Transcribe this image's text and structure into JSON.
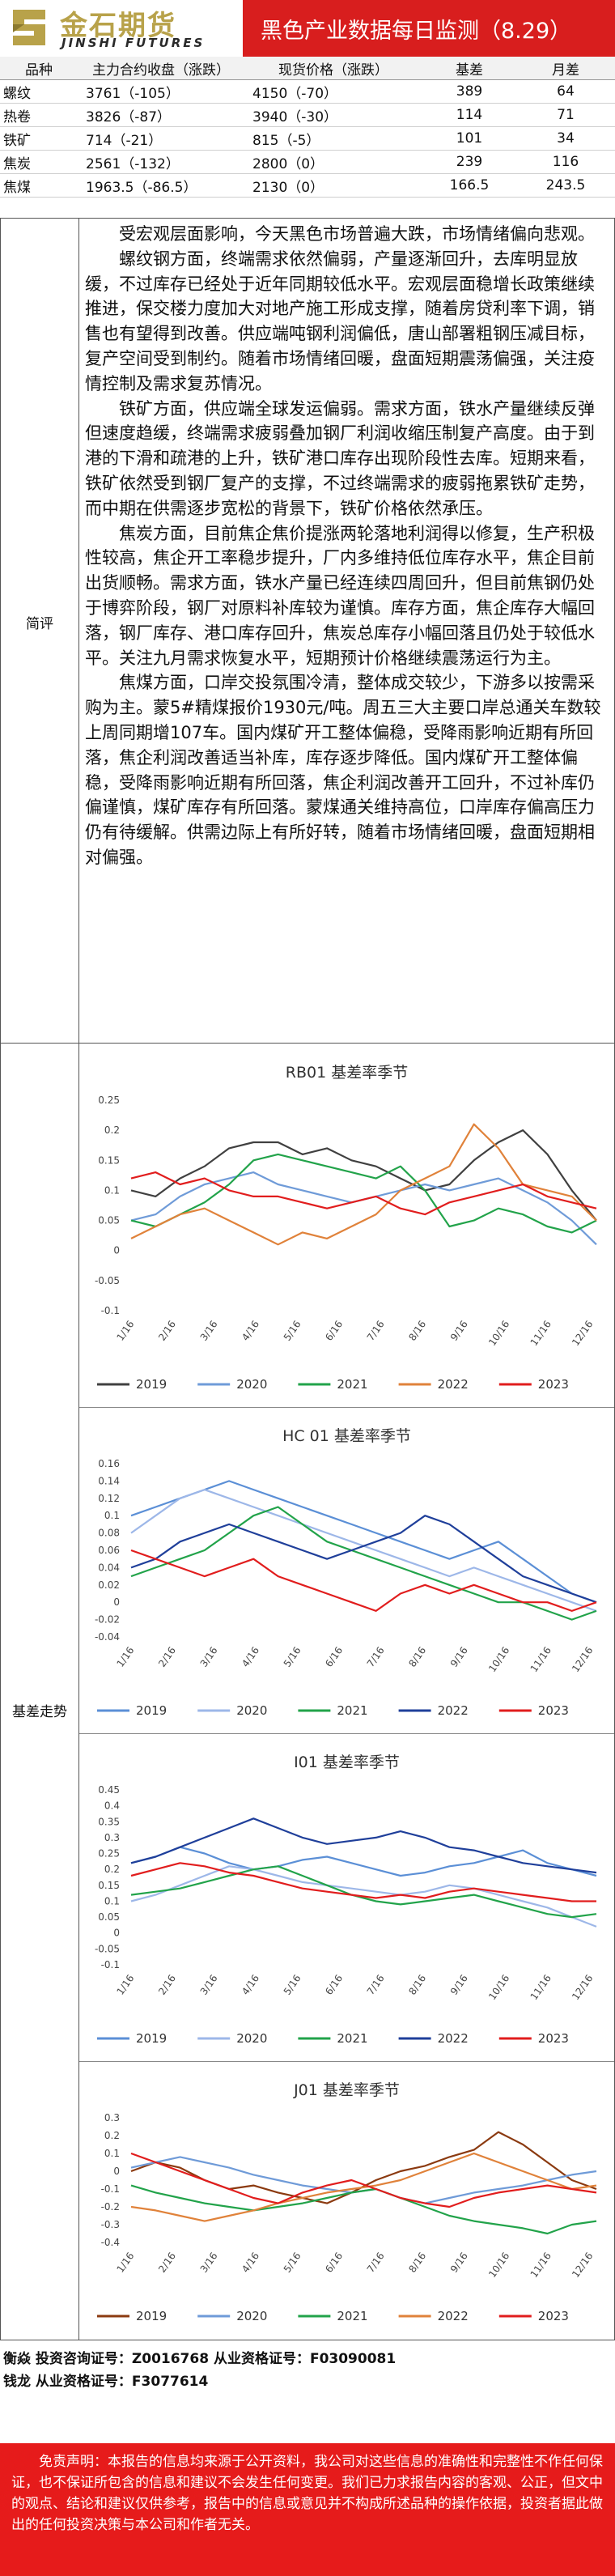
{
  "header": {
    "logo_cn": "金石期货",
    "logo_en": "JINSHI FUTURES",
    "title": "黑色产业数据每日监测（8.29）",
    "accent": "#d81e1e",
    "logo_gold": "#b8a24a"
  },
  "price_table": {
    "headers": [
      "品种",
      "主力合约收盘（涨跌）",
      "现货价格（涨跌）",
      "基差",
      "月差"
    ],
    "rows": [
      {
        "name": "螺纹",
        "futures": "3761（-105）",
        "spot": "4150（-70）",
        "basis": "389",
        "spread": "64"
      },
      {
        "name": "热卷",
        "futures": "3826（-87）",
        "spot": "3940（-30）",
        "basis": "114",
        "spread": "71"
      },
      {
        "name": "铁矿",
        "futures": "714（-21）",
        "spot": "815（-5）",
        "basis": "101",
        "spread": "34"
      },
      {
        "name": "焦炭",
        "futures": "2561（-132）",
        "spot": "2800（0）",
        "basis": "239",
        "spread": "116"
      },
      {
        "name": "焦煤",
        "futures": "1963.5（-86.5）",
        "spot": "2130（0）",
        "basis": "166.5",
        "spread": "243.5"
      }
    ]
  },
  "commentary": {
    "label": "简评",
    "paragraphs": [
      "受宏观层面影响，今天黑色市场普遍大跌，市场情绪偏向悲观。",
      "螺纹钢方面，终端需求依然偏弱，产量逐渐回升，去库明显放缓，不过库存已经处于近年同期较低水平。宏观层面稳增长政策继续推进，保交楼力度加大对地产施工形成支撑，随着房贷利率下调，销售也有望得到改善。供应端吨钢利润偏低，唐山部署粗钢压减目标，复产空间受到制约。随着市场情绪回暖，盘面短期震荡偏强，关注疫情控制及需求复苏情况。",
      "铁矿方面，供应端全球发运偏弱。需求方面，铁水产量继续反弹但速度趋缓，终端需求疲弱叠加钢厂利润收缩压制复产高度。由于到港的下滑和疏港的上升，铁矿港口库存出现阶段性去库。短期来看，铁矿依然受到钢厂复产的支撑，不过终端需求的疲弱拖累铁矿走势，而中期在供需逐步宽松的背景下，铁矿价格依然承压。",
      "焦炭方面，目前焦企焦价提涨两轮落地利润得以修复，生产积极性较高，焦企开工率稳步提升，厂内多维持低位库存水平，焦企目前出货顺畅。需求方面，铁水产量已经连续四周回升，但目前焦钢仍处于博弈阶段，钢厂对原料补库较为谨慎。库存方面，焦企库存大幅回落，钢厂库存、港口库存回升，焦炭总库存小幅回落且仍处于较低水平。关注九月需求恢复水平，短期预计价格继续震荡运行为主。",
      "焦煤方面，口岸交投氛围冷清，整体成交较少，下游多以按需采购为主。蒙5#精煤报价1930元/吨。周五三大主要口岸总通关车数较上周同期增107车。国内煤矿开工整体偏稳，受降雨影响近期有所回落，焦企利润改善适当补库，库存逐步降低。国内煤矿开工整体偏稳，受降雨影响近期有所回落，焦企利润改善开工回升，不过补库仍偏谨慎，煤矿库存有所回落。蒙煤通关维持高位，口岸库存偏高压力仍有待缓解。供需边际上有所好转，随着市场情绪回暖，盘面短期相对偏强。"
    ]
  },
  "basis_label": "基差走势",
  "chart_data": [
    {
      "type": "line",
      "title": "RB01 基差率季节",
      "xticks": [
        "1/16",
        "2/16",
        "3/16",
        "4/16",
        "5/16",
        "6/16",
        "7/16",
        "8/16",
        "9/16",
        "10/16",
        "11/16",
        "12/16"
      ],
      "ylim": [
        -0.1,
        0.25
      ],
      "yticks": [
        "0.25",
        "0.2",
        "0.15",
        "0.1",
        "0.05",
        "0",
        "-0.05",
        "-0.1"
      ],
      "series": [
        {
          "name": "2019",
          "color": "#404040",
          "values": [
            0.1,
            0.09,
            0.12,
            0.14,
            0.17,
            0.18,
            0.18,
            0.16,
            0.17,
            0.15,
            0.14,
            0.12,
            0.1,
            0.11,
            0.15,
            0.18,
            0.2,
            0.16,
            0.1,
            0.05
          ]
        },
        {
          "name": "2020",
          "color": "#6f9bd8",
          "values": [
            0.05,
            0.06,
            0.09,
            0.11,
            0.12,
            0.13,
            0.11,
            0.1,
            0.09,
            0.08,
            0.09,
            0.1,
            0.11,
            0.1,
            0.11,
            0.12,
            0.1,
            0.08,
            0.05,
            0.01
          ]
        },
        {
          "name": "2021",
          "color": "#22a34a",
          "values": [
            0.05,
            0.04,
            0.06,
            0.08,
            0.11,
            0.15,
            0.16,
            0.15,
            0.14,
            0.13,
            0.12,
            0.14,
            0.1,
            0.04,
            0.05,
            0.07,
            0.06,
            0.04,
            0.03,
            0.05
          ]
        },
        {
          "name": "2022",
          "color": "#e0823a",
          "values": [
            0.02,
            0.04,
            0.06,
            0.07,
            0.05,
            0.03,
            0.01,
            0.03,
            0.02,
            0.04,
            0.06,
            0.1,
            0.12,
            0.14,
            0.21,
            0.17,
            0.11,
            0.1,
            0.09,
            0.05
          ]
        },
        {
          "name": "2023",
          "color": "#e11d1d",
          "values": [
            0.12,
            0.13,
            0.11,
            0.12,
            0.1,
            0.09,
            0.09,
            0.08,
            0.07,
            0.08,
            0.09,
            0.07,
            0.06,
            0.08,
            0.09,
            0.1,
            0.11,
            0.09,
            0.08,
            0.07
          ]
        }
      ]
    },
    {
      "type": "line",
      "title": "HC 01 基差率季节",
      "xticks": [
        "1/16",
        "2/16",
        "3/16",
        "4/16",
        "5/16",
        "6/16",
        "7/16",
        "8/16",
        "9/16",
        "10/16",
        "11/16",
        "12/16"
      ],
      "ylim": [
        -0.04,
        0.16
      ],
      "yticks": [
        "0.16",
        "0.14",
        "0.12",
        "0.1",
        "0.08",
        "0.06",
        "0.04",
        "0.02",
        "0",
        "-0.02",
        "-0.04"
      ],
      "series": [
        {
          "name": "2019",
          "color": "#5b8fd6",
          "values": [
            0.1,
            0.11,
            0.12,
            0.13,
            0.14,
            0.13,
            0.12,
            0.11,
            0.1,
            0.09,
            0.08,
            0.07,
            0.06,
            0.05,
            0.06,
            0.07,
            0.05,
            0.03,
            0.01,
            0.0
          ]
        },
        {
          "name": "2020",
          "color": "#9db7e8",
          "values": [
            0.08,
            0.1,
            0.12,
            0.13,
            0.12,
            0.11,
            0.1,
            0.09,
            0.08,
            0.07,
            0.06,
            0.05,
            0.04,
            0.03,
            0.04,
            0.03,
            0.02,
            0.01,
            0.0,
            -0.01
          ]
        },
        {
          "name": "2021",
          "color": "#22a34a",
          "values": [
            0.03,
            0.04,
            0.05,
            0.06,
            0.08,
            0.1,
            0.11,
            0.09,
            0.07,
            0.06,
            0.05,
            0.04,
            0.03,
            0.02,
            0.01,
            0.0,
            0.0,
            -0.01,
            -0.02,
            -0.01
          ]
        },
        {
          "name": "2022",
          "color": "#1f3f9a",
          "values": [
            0.04,
            0.05,
            0.07,
            0.08,
            0.09,
            0.08,
            0.07,
            0.06,
            0.05,
            0.06,
            0.07,
            0.08,
            0.1,
            0.09,
            0.07,
            0.05,
            0.03,
            0.02,
            0.01,
            0.0
          ]
        },
        {
          "name": "2023",
          "color": "#e11d1d",
          "values": [
            0.06,
            0.05,
            0.04,
            0.03,
            0.04,
            0.05,
            0.03,
            0.02,
            0.01,
            0.0,
            -0.01,
            0.01,
            0.02,
            0.01,
            0.02,
            0.01,
            0.0,
            0.0,
            -0.01,
            0.0
          ]
        }
      ]
    },
    {
      "type": "line",
      "title": "I01 基差率季节",
      "xticks": [
        "1/16",
        "2/16",
        "3/16",
        "4/16",
        "5/16",
        "6/16",
        "7/16",
        "8/16",
        "9/16",
        "10/16",
        "11/16",
        "12/16"
      ],
      "ylim": [
        -0.1,
        0.45
      ],
      "yticks": [
        "0.45",
        "0.4",
        "0.35",
        "0.3",
        "0.25",
        "0.2",
        "0.15",
        "0.1",
        "0.05",
        "0",
        "-0.05",
        "-0.1"
      ],
      "series": [
        {
          "name": "2019",
          "color": "#5b8fd6",
          "values": [
            0.22,
            0.24,
            0.27,
            0.25,
            0.22,
            0.2,
            0.21,
            0.23,
            0.24,
            0.22,
            0.2,
            0.18,
            0.19,
            0.21,
            0.22,
            0.24,
            0.26,
            0.22,
            0.2,
            0.18
          ]
        },
        {
          "name": "2020",
          "color": "#9db7e8",
          "values": [
            0.1,
            0.12,
            0.15,
            0.18,
            0.21,
            0.2,
            0.18,
            0.16,
            0.15,
            0.14,
            0.13,
            0.12,
            0.13,
            0.15,
            0.14,
            0.12,
            0.1,
            0.08,
            0.05,
            0.02
          ]
        },
        {
          "name": "2021",
          "color": "#22a34a",
          "values": [
            0.12,
            0.13,
            0.14,
            0.16,
            0.18,
            0.2,
            0.21,
            0.18,
            0.15,
            0.12,
            0.1,
            0.09,
            0.1,
            0.11,
            0.12,
            0.1,
            0.08,
            0.06,
            0.05,
            0.06
          ]
        },
        {
          "name": "2022",
          "color": "#1f3f9a",
          "values": [
            0.22,
            0.24,
            0.27,
            0.3,
            0.33,
            0.36,
            0.33,
            0.3,
            0.28,
            0.29,
            0.3,
            0.32,
            0.3,
            0.27,
            0.26,
            0.24,
            0.22,
            0.21,
            0.2,
            0.19
          ]
        },
        {
          "name": "2023",
          "color": "#e11d1d",
          "values": [
            0.18,
            0.2,
            0.22,
            0.21,
            0.19,
            0.18,
            0.16,
            0.14,
            0.13,
            0.12,
            0.11,
            0.12,
            0.11,
            0.13,
            0.14,
            0.13,
            0.12,
            0.11,
            0.1,
            0.1
          ]
        }
      ]
    },
    {
      "type": "line",
      "title": "J01 基差率季节",
      "xticks": [
        "1/16",
        "2/16",
        "3/16",
        "4/16",
        "5/16",
        "6/16",
        "7/16",
        "8/16",
        "9/16",
        "10/16",
        "11/16",
        "12/16"
      ],
      "ylim": [
        -0.4,
        0.3
      ],
      "yticks": [
        "0.3",
        "0.2",
        "0.1",
        "0",
        "-0.1",
        "-0.2",
        "-0.3",
        "-0.4"
      ],
      "series": [
        {
          "name": "2019",
          "color": "#8b3a10",
          "values": [
            0.0,
            0.05,
            0.02,
            -0.05,
            -0.1,
            -0.08,
            -0.12,
            -0.15,
            -0.18,
            -0.12,
            -0.05,
            0.0,
            0.03,
            0.08,
            0.12,
            0.22,
            0.15,
            0.05,
            -0.05,
            -0.1
          ]
        },
        {
          "name": "2020",
          "color": "#6f9bd8",
          "values": [
            0.02,
            0.05,
            0.08,
            0.05,
            0.02,
            -0.02,
            -0.05,
            -0.08,
            -0.1,
            -0.12,
            -0.1,
            -0.15,
            -0.18,
            -0.15,
            -0.12,
            -0.1,
            -0.08,
            -0.05,
            -0.02,
            0.0
          ]
        },
        {
          "name": "2021",
          "color": "#22a34a",
          "values": [
            -0.08,
            -0.12,
            -0.15,
            -0.18,
            -0.2,
            -0.22,
            -0.2,
            -0.18,
            -0.15,
            -0.12,
            -0.1,
            -0.15,
            -0.2,
            -0.25,
            -0.28,
            -0.3,
            -0.32,
            -0.35,
            -0.3,
            -0.28
          ]
        },
        {
          "name": "2022",
          "color": "#e0823a",
          "values": [
            -0.2,
            -0.22,
            -0.25,
            -0.28,
            -0.25,
            -0.22,
            -0.18,
            -0.15,
            -0.12,
            -0.1,
            -0.08,
            -0.05,
            0.0,
            0.05,
            0.1,
            0.05,
            0.0,
            -0.05,
            -0.1,
            -0.08
          ]
        },
        {
          "name": "2023",
          "color": "#e11d1d",
          "values": [
            0.1,
            0.05,
            0.0,
            -0.05,
            -0.1,
            -0.15,
            -0.18,
            -0.12,
            -0.08,
            -0.05,
            -0.1,
            -0.15,
            -0.18,
            -0.2,
            -0.15,
            -0.12,
            -0.1,
            -0.08,
            -0.1,
            -0.12
          ]
        }
      ]
    }
  ],
  "footer": {
    "analyst_1": "衡焱 投资咨询证号：Z0016768 从业资格证号：F03090081",
    "analyst_2": "钱龙 从业资格证号：F3077614",
    "disclaimer": "免责声明：本报告的信息均来源于公开资料，我公司对这些信息的准确性和完整性不作任何保证，也不保证所包含的信息和建议不会发生任何变更。我们已力求报告内容的客观、公正，但文中的观点、结论和建议仅供参考，报告中的信息或意见并不构成所述品种的操作依据，投资者据此做出的任何投资决策与本公司和作者无关。"
  }
}
